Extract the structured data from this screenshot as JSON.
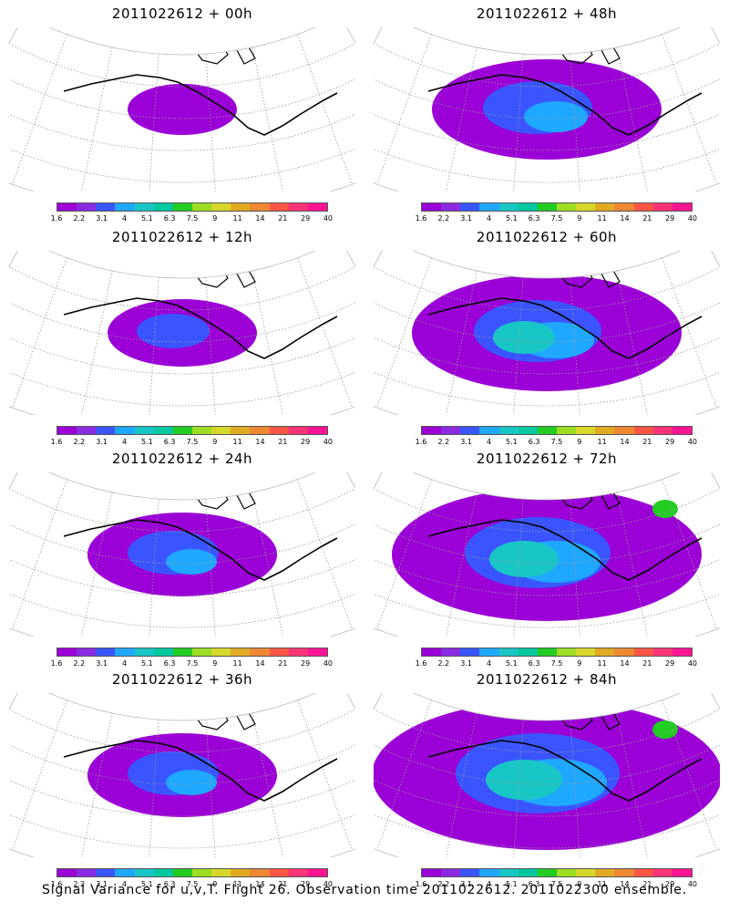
{
  "panels": [
    {
      "title": "2011022612 + 00h",
      "level": 0
    },
    {
      "title": "2011022612 + 48h",
      "level": 3
    },
    {
      "title": "2011022612 + 12h",
      "level": 1
    },
    {
      "title": "2011022612 + 60h",
      "level": 4
    },
    {
      "title": "2011022612 + 24h",
      "level": 2
    },
    {
      "title": "2011022612 + 72h",
      "level": 5
    },
    {
      "title": "2011022612 + 36h",
      "level": 2
    },
    {
      "title": "2011022612 + 84h",
      "level": 6
    }
  ],
  "colorbar": {
    "colors": [
      "#9b00d6",
      "#8a2be2",
      "#3a55ff",
      "#1fa8ff",
      "#19c6c6",
      "#00c8a0",
      "#22cc22",
      "#9ddd22",
      "#d7d72a",
      "#e0aa22",
      "#ee8833",
      "#ff5544",
      "#ff3377",
      "#ff1493"
    ],
    "labels": [
      "1.6",
      "2.2",
      "3.1",
      "4",
      "5.1",
      "6.3",
      "7.5",
      "9",
      "11",
      "14",
      "21",
      "29",
      "40"
    ]
  },
  "footer": "Signal Variance for u,v,T. Flight 26. Observation time 2011022612. 2011022300 ensemble."
}
